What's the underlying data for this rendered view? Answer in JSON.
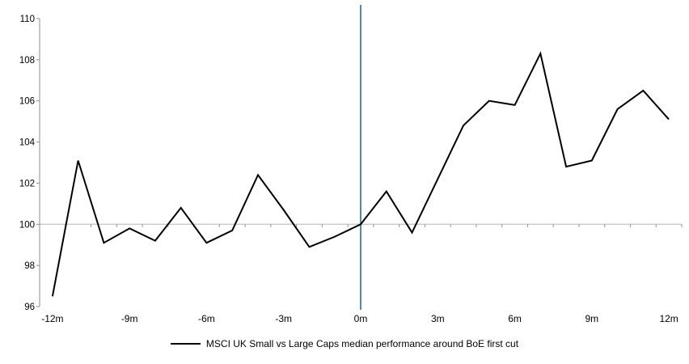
{
  "chart_data": {
    "type": "line",
    "title": "",
    "x": [
      -12,
      -11,
      -10,
      -9,
      -8,
      -7,
      -6,
      -5,
      -4,
      -3,
      -2,
      -1,
      0,
      1,
      2,
      3,
      4,
      5,
      6,
      7,
      8,
      9,
      10,
      11,
      12
    ],
    "series": [
      {
        "name": "MSCI UK Small vs Large Caps median performance around BoE first cut",
        "color": "#000000",
        "values": [
          96.5,
          103.1,
          99.1,
          99.8,
          99.2,
          100.8,
          99.1,
          99.7,
          102.4,
          100.7,
          98.9,
          99.4,
          100.0,
          101.6,
          99.6,
          102.2,
          104.8,
          106.0,
          105.8,
          108.3,
          102.8,
          103.1,
          105.6,
          106.5,
          105.1
        ]
      }
    ],
    "x_ticks": [
      {
        "month": -12,
        "label": "-12m"
      },
      {
        "month": -9,
        "label": "-9m"
      },
      {
        "month": -6,
        "label": "-6m"
      },
      {
        "month": -3,
        "label": "-3m"
      },
      {
        "month": 0,
        "label": "0m"
      },
      {
        "month": 3,
        "label": "3m"
      },
      {
        "month": 6,
        "label": "6m"
      },
      {
        "month": 9,
        "label": "9m"
      },
      {
        "month": 12,
        "label": "12m"
      }
    ],
    "y_ticks": [
      96,
      98,
      100,
      102,
      104,
      106,
      108,
      110
    ],
    "ylim": [
      96,
      110
    ],
    "baseline_value": 100,
    "event_line_month": 0,
    "legend_position": "bottom-center",
    "grid": false,
    "colors": {
      "series": "#000000",
      "event_line": "#4E87C3",
      "baseline": "#C3C3C3",
      "axis": "#8E8E8E",
      "axis_tick": "#8E8E8E",
      "text": "#000000"
    }
  }
}
